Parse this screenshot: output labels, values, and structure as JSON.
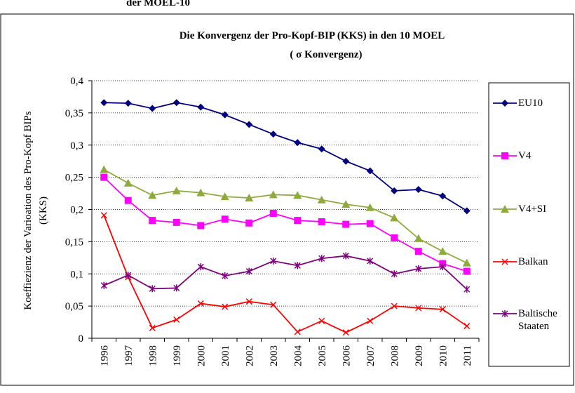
{
  "heading": "der MOEL-10",
  "chart_data": {
    "type": "line",
    "title": "Die Konvergenz der Pro-Kopf-BIP (KKS) in den 10 MOEL",
    "subtitle": "( σ Konvergenz)",
    "y_label": [
      "Koeffiezienz der Varioation des Pro-Kopf BIPs",
      "(KKS)"
    ],
    "categories": [
      "1996",
      "1997",
      "1998",
      "1999",
      "2000",
      "2001",
      "2002",
      "2003",
      "2004",
      "2005",
      "2006",
      "2007",
      "2008",
      "2009",
      "2010",
      "2011"
    ],
    "series": [
      {
        "name": "EU10",
        "color": "#000080",
        "marker": "diamond",
        "values": [
          0.366,
          0.365,
          0.357,
          0.366,
          0.359,
          0.347,
          0.332,
          0.317,
          0.304,
          0.294,
          0.275,
          0.26,
          0.229,
          0.231,
          0.221,
          0.198
        ]
      },
      {
        "name": "V4",
        "color": "#ff00ff",
        "marker": "square",
        "values": [
          0.25,
          0.214,
          0.183,
          0.18,
          0.175,
          0.185,
          0.179,
          0.194,
          0.183,
          0.181,
          0.177,
          0.178,
          0.156,
          0.135,
          0.116,
          0.104
        ]
      },
      {
        "name": "V4+SI",
        "color": "#8faa3c",
        "marker": "triangle",
        "values": [
          0.262,
          0.241,
          0.222,
          0.229,
          0.226,
          0.22,
          0.218,
          0.223,
          0.222,
          0.215,
          0.208,
          0.203,
          0.187,
          0.155,
          0.135,
          0.117
        ]
      },
      {
        "name": "Balkan",
        "color": "#ff0000",
        "marker": "x",
        "values": [
          0.191,
          0.095,
          0.016,
          0.029,
          0.054,
          0.049,
          0.057,
          0.052,
          0.01,
          0.027,
          0.009,
          0.027,
          0.05,
          0.047,
          0.045,
          0.019
        ]
      },
      {
        "name": "Baltische Staaten",
        "color": "#800080",
        "marker": "star",
        "values": [
          0.082,
          0.098,
          0.077,
          0.078,
          0.111,
          0.097,
          0.104,
          0.12,
          0.113,
          0.124,
          0.128,
          0.12,
          0.1,
          0.108,
          0.111,
          0.076
        ]
      }
    ],
    "ylim": [
      0,
      0.4
    ],
    "yticks": [
      0,
      {
        "value": 0.05,
        "label": "0,05"
      },
      {
        "value": 0.1,
        "label": "0,1"
      },
      {
        "value": 0.15,
        "label": "0,15"
      },
      {
        "value": 0.2,
        "label": "0,2"
      },
      {
        "value": 0.25,
        "label": "0,25"
      },
      {
        "value": 0.3,
        "label": "0,3"
      },
      {
        "value": 0.35,
        "label": "0,35"
      },
      {
        "value": 0.4,
        "label": "0,4"
      }
    ],
    "grid": true
  }
}
